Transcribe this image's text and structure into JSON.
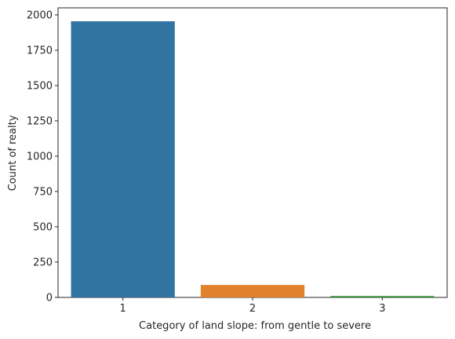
{
  "chart_data": {
    "type": "bar",
    "title": "",
    "xlabel": "Category of land slope: from gentle to severe",
    "ylabel": "Count of realty",
    "categories": [
      "1",
      "2",
      "3"
    ],
    "values": [
      1955,
      88,
      10
    ],
    "colors": [
      "#3274a1",
      "#e1812c",
      "#3a923a"
    ],
    "ylim": [
      0,
      2050
    ],
    "yticks": [
      0,
      250,
      500,
      750,
      1000,
      1250,
      1500,
      1750,
      2000
    ],
    "grid": false,
    "legend": "none"
  }
}
